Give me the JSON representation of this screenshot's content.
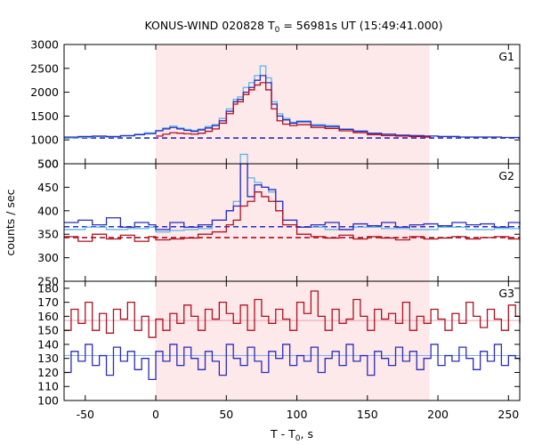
{
  "title": "KONUS-WIND 020828 T₀ = 56981s UT (15:49:41.000)",
  "title_parts": {
    "prefix": "KONUS-WIND 020828 T",
    "sub": "0",
    "suffix": " = 56981s UT (15:49:41.000)"
  },
  "xlabel_parts": {
    "prefix": "T - T",
    "sub": "0",
    "suffix": ", s"
  },
  "ylabel": "counts / sec",
  "colors": {
    "highlight": "#fde8ea",
    "series_light": "#5bb8e8",
    "series_blue": "#2b2bbf",
    "series_dark": "#b01020",
    "bg_blue_line": "#7fb0e8",
    "bg_pink_line": "#f0a0b0"
  },
  "chart_data": [
    {
      "type": "line",
      "panel": "G1",
      "xlim": [
        -65,
        258
      ],
      "ylim": [
        500,
        3000
      ],
      "xticks": [
        -50,
        0,
        50,
        100,
        150,
        200,
        250
      ],
      "yticks": [
        500,
        1000,
        1500,
        2000,
        2500,
        3000
      ],
      "highlight_x": [
        0,
        194
      ],
      "background": {
        "value": 1040,
        "color": "#2b2bbf",
        "style": "dashed"
      },
      "series": [
        {
          "color": "#5bb8e8",
          "x": [
            -65,
            -55,
            -45,
            -35,
            -25,
            -15,
            -8,
            0,
            5,
            10,
            15,
            20,
            25,
            30,
            35,
            40,
            45,
            50,
            55,
            58,
            62,
            66,
            70,
            74,
            78,
            82,
            86,
            90,
            95,
            100,
            110,
            120,
            130,
            140,
            150,
            160,
            170,
            180,
            190,
            200,
            215,
            230,
            245,
            258
          ],
          "y": [
            1040,
            1050,
            1070,
            1060,
            1080,
            1120,
            1150,
            1200,
            1250,
            1290,
            1250,
            1220,
            1200,
            1230,
            1280,
            1320,
            1450,
            1650,
            1850,
            1900,
            2100,
            2200,
            2350,
            2550,
            2300,
            1800,
            1550,
            1450,
            1370,
            1400,
            1320,
            1300,
            1230,
            1190,
            1140,
            1120,
            1100,
            1090,
            1080,
            1070,
            1060,
            1060,
            1050,
            1050
          ]
        },
        {
          "color": "#2b2bbf",
          "x": [
            -65,
            -55,
            -45,
            -35,
            -25,
            -15,
            -8,
            0,
            5,
            10,
            15,
            20,
            25,
            30,
            35,
            40,
            45,
            50,
            55,
            58,
            62,
            66,
            70,
            74,
            78,
            82,
            86,
            90,
            95,
            100,
            110,
            120,
            130,
            140,
            150,
            160,
            170,
            180,
            190,
            200,
            215,
            230,
            245,
            258
          ],
          "y": [
            1060,
            1070,
            1080,
            1070,
            1090,
            1110,
            1130,
            1190,
            1230,
            1260,
            1230,
            1200,
            1180,
            1210,
            1250,
            1300,
            1400,
            1600,
            1800,
            1850,
            2000,
            2100,
            2250,
            2350,
            2200,
            1750,
            1500,
            1420,
            1350,
            1380,
            1300,
            1280,
            1220,
            1180,
            1140,
            1120,
            1100,
            1090,
            1080,
            1070,
            1060,
            1060,
            1050,
            1050
          ]
        },
        {
          "color": "#b01020",
          "x": [
            0,
            5,
            10,
            15,
            20,
            25,
            30,
            35,
            40,
            45,
            50,
            55,
            58,
            62,
            66,
            70,
            74,
            78,
            82,
            86,
            90,
            95,
            100,
            110,
            120,
            130,
            140,
            150,
            160,
            170,
            180,
            190
          ],
          "y": [
            1080,
            1120,
            1150,
            1140,
            1130,
            1120,
            1140,
            1180,
            1230,
            1350,
            1550,
            1750,
            1800,
            1950,
            2050,
            2150,
            2200,
            2050,
            1650,
            1400,
            1330,
            1300,
            1320,
            1260,
            1240,
            1190,
            1150,
            1110,
            1090,
            1080,
            1070,
            1060
          ]
        }
      ]
    },
    {
      "type": "line",
      "panel": "G2",
      "xlim": [
        -65,
        258
      ],
      "ylim": [
        250,
        500
      ],
      "xticks": [
        -50,
        0,
        50,
        100,
        150,
        200,
        250
      ],
      "yticks": [
        250,
        300,
        350,
        400,
        450,
        500
      ],
      "highlight_x": [
        0,
        194
      ],
      "background": [
        {
          "value": 366,
          "color": "#2b2bbf",
          "style": "dashed"
        },
        {
          "value": 343,
          "color": "#b01020",
          "style": "dashed"
        }
      ],
      "series": [
        {
          "color": "#5bb8e8",
          "x": [
            -65,
            -50,
            -35,
            -20,
            -5,
            0,
            10,
            20,
            30,
            40,
            50,
            55,
            60,
            65,
            70,
            75,
            80,
            85,
            90,
            100,
            120,
            140,
            160,
            180,
            200,
            220,
            240,
            258
          ],
          "y": [
            360,
            365,
            360,
            362,
            365,
            355,
            358,
            360,
            362,
            380,
            400,
            420,
            520,
            470,
            460,
            450,
            440,
            420,
            380,
            365,
            360,
            365,
            362,
            360,
            365,
            360,
            362,
            365
          ]
        },
        {
          "color": "#2b2bbf",
          "x": [
            -65,
            -55,
            -45,
            -35,
            -25,
            -15,
            -5,
            0,
            10,
            20,
            30,
            40,
            50,
            55,
            60,
            65,
            70,
            75,
            80,
            85,
            90,
            100,
            110,
            120,
            130,
            140,
            150,
            160,
            170,
            180,
            190,
            200,
            210,
            220,
            230,
            240,
            250,
            258
          ],
          "y": [
            375,
            380,
            370,
            385,
            365,
            375,
            370,
            360,
            375,
            365,
            370,
            380,
            400,
            410,
            500,
            430,
            455,
            450,
            445,
            420,
            380,
            365,
            370,
            375,
            360,
            372,
            368,
            375,
            365,
            370,
            372,
            368,
            375,
            370,
            372,
            365,
            375,
            370
          ]
        },
        {
          "color": "#b01020",
          "x": [
            -65,
            -55,
            -45,
            -35,
            -25,
            -15,
            -5,
            0,
            10,
            20,
            30,
            40,
            50,
            55,
            60,
            65,
            70,
            75,
            80,
            85,
            90,
            100,
            110,
            120,
            130,
            140,
            150,
            160,
            170,
            180,
            190,
            200,
            210,
            220,
            230,
            240,
            250,
            258
          ],
          "y": [
            345,
            335,
            350,
            340,
            348,
            335,
            345,
            338,
            340,
            342,
            350,
            355,
            370,
            380,
            410,
            420,
            440,
            430,
            420,
            400,
            370,
            350,
            345,
            342,
            348,
            340,
            345,
            342,
            338,
            345,
            340,
            342,
            345,
            340,
            343,
            345,
            340,
            342
          ]
        }
      ]
    },
    {
      "type": "line",
      "panel": "G3",
      "xlim": [
        -65,
        258
      ],
      "ylim": [
        100,
        185
      ],
      "xticks": [
        -50,
        0,
        50,
        100,
        150,
        200,
        250
      ],
      "yticks": [
        100,
        110,
        120,
        130,
        140,
        150,
        160,
        170,
        180
      ],
      "highlight_x": [
        0,
        194
      ],
      "background": [
        {
          "value": 157,
          "color": "#f0a0b0",
          "style": "solid"
        },
        {
          "value": 132,
          "color": "#7fb0e8",
          "style": "solid"
        }
      ],
      "series": [
        {
          "color": "#b01020",
          "x": [
            -65,
            -60,
            -55,
            -50,
            -45,
            -40,
            -35,
            -30,
            -25,
            -20,
            -15,
            -10,
            -5,
            0,
            5,
            10,
            15,
            20,
            25,
            30,
            35,
            40,
            45,
            50,
            55,
            60,
            65,
            70,
            75,
            80,
            85,
            90,
            95,
            100,
            105,
            110,
            115,
            120,
            125,
            130,
            135,
            140,
            145,
            150,
            155,
            160,
            165,
            170,
            175,
            180,
            185,
            190,
            195,
            200,
            205,
            210,
            215,
            220,
            225,
            230,
            235,
            240,
            245,
            250,
            255,
            258
          ],
          "y": [
            150,
            165,
            155,
            170,
            150,
            162,
            148,
            165,
            158,
            170,
            150,
            160,
            145,
            158,
            150,
            162,
            155,
            168,
            160,
            150,
            165,
            158,
            170,
            162,
            155,
            168,
            150,
            172,
            160,
            155,
            165,
            158,
            150,
            170,
            162,
            178,
            160,
            150,
            165,
            155,
            158,
            172,
            160,
            150,
            165,
            158,
            162,
            155,
            170,
            150,
            160,
            155,
            165,
            158,
            150,
            162,
            155,
            170,
            160,
            152,
            165,
            158,
            150,
            168,
            160,
            155
          ]
        },
        {
          "color": "#2b2bbf",
          "x": [
            -65,
            -60,
            -55,
            -50,
            -45,
            -40,
            -35,
            -30,
            -25,
            -20,
            -15,
            -10,
            -5,
            0,
            5,
            10,
            15,
            20,
            25,
            30,
            35,
            40,
            45,
            50,
            55,
            60,
            65,
            70,
            75,
            80,
            85,
            90,
            95,
            100,
            105,
            110,
            115,
            120,
            125,
            130,
            135,
            140,
            145,
            150,
            155,
            160,
            165,
            170,
            175,
            180,
            185,
            190,
            195,
            200,
            205,
            210,
            215,
            220,
            225,
            230,
            235,
            240,
            245,
            250,
            255,
            258
          ],
          "y": [
            120,
            135,
            128,
            140,
            125,
            132,
            118,
            138,
            128,
            135,
            122,
            130,
            115,
            135,
            128,
            140,
            125,
            138,
            130,
            122,
            135,
            128,
            118,
            140,
            130,
            125,
            138,
            128,
            120,
            135,
            130,
            140,
            125,
            132,
            128,
            138,
            120,
            130,
            135,
            125,
            140,
            128,
            132,
            118,
            135,
            130,
            125,
            138,
            128,
            135,
            122,
            130,
            140,
            125,
            132,
            128,
            138,
            130,
            122,
            135,
            128,
            140,
            125,
            132,
            130,
            128
          ]
        }
      ]
    }
  ],
  "panel_labels": [
    "G1",
    "G2",
    "G3"
  ]
}
